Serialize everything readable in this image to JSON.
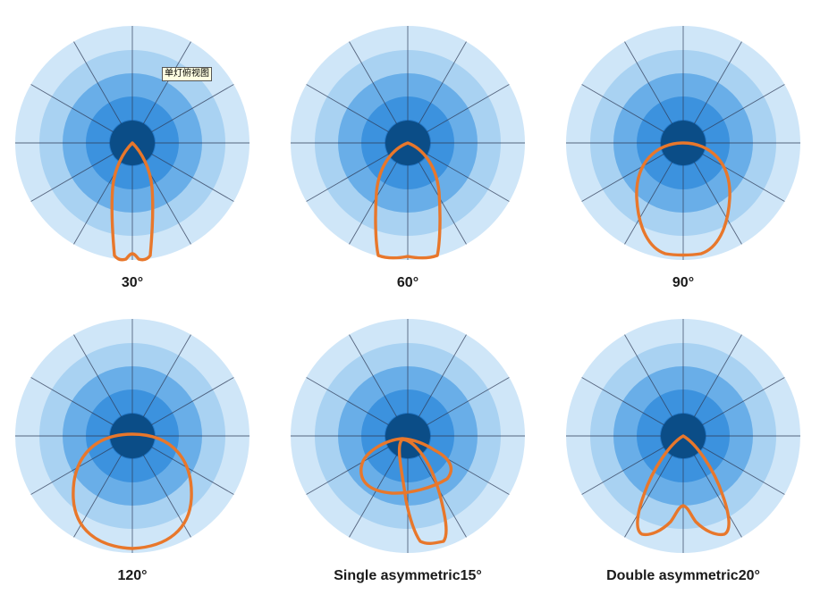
{
  "tooltip": "单灯俯视图",
  "colors": {
    "ring_outer": "#cfe6f8",
    "ring_2": "#a9d2f2",
    "ring_3": "#69aee8",
    "ring_4": "#3c92de",
    "ring_5": "#2579c8",
    "ring_center": "#0b4d87",
    "grid": "#2e3a55",
    "curve": "#e8772b"
  },
  "diagrams": [
    {
      "id": "d30",
      "label": "30°"
    },
    {
      "id": "d60",
      "label": "60°"
    },
    {
      "id": "d90",
      "label": "90°"
    },
    {
      "id": "d120",
      "label": "120°"
    },
    {
      "id": "ds15",
      "label": "Single asymmetric15°"
    },
    {
      "id": "dd20",
      "label": "Double asymmetric20°"
    }
  ]
}
